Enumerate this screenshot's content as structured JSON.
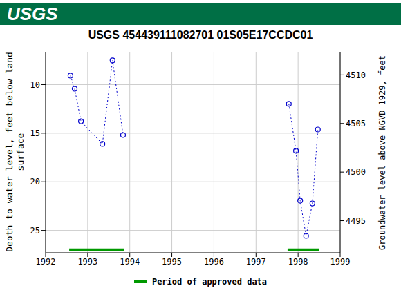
{
  "chart_data": {
    "type": "line",
    "banner": "USGS",
    "title": "USGS 454439111082701 01S05E17CCDC01",
    "ylabel": "Depth to water level, feet below land surface",
    "y2label": "Groundwater level above NGVD 1929, feet",
    "series": [
      {
        "x": [
          1992.59,
          1992.69,
          1992.84,
          1993.35,
          1993.59,
          1993.84
        ],
        "values": [
          9.08,
          10.43,
          13.77,
          16.11,
          7.51,
          15.19
        ],
        "color": "#0000cc",
        "marker": "circle",
        "line_style": "dotted"
      },
      {
        "x": [
          1997.78,
          1997.95,
          1998.05,
          1998.19,
          1998.34,
          1998.47
        ],
        "values": [
          11.99,
          16.82,
          21.94,
          25.56,
          22.22,
          14.62
        ],
        "color": "#0000cc",
        "marker": "circle",
        "line_style": "dotted"
      }
    ],
    "xlim": [
      1992,
      1999
    ],
    "xticks": [
      1992,
      1993,
      1994,
      1995,
      1996,
      1997,
      1998,
      1999
    ],
    "ylim": [
      27.3,
      6.7
    ],
    "yticks": [
      10,
      15,
      20,
      25
    ],
    "y2lim": [
      4491.7,
      4512.3
    ],
    "y2ticks": [
      4495,
      4500,
      4505,
      4510
    ],
    "grid": true,
    "approved_periods": {
      "name": "Period of approved data",
      "color": "#009900",
      "intervals": [
        [
          1992.56,
          1993.87
        ],
        [
          1997.75,
          1998.5
        ]
      ]
    },
    "legend": "bottom"
  }
}
